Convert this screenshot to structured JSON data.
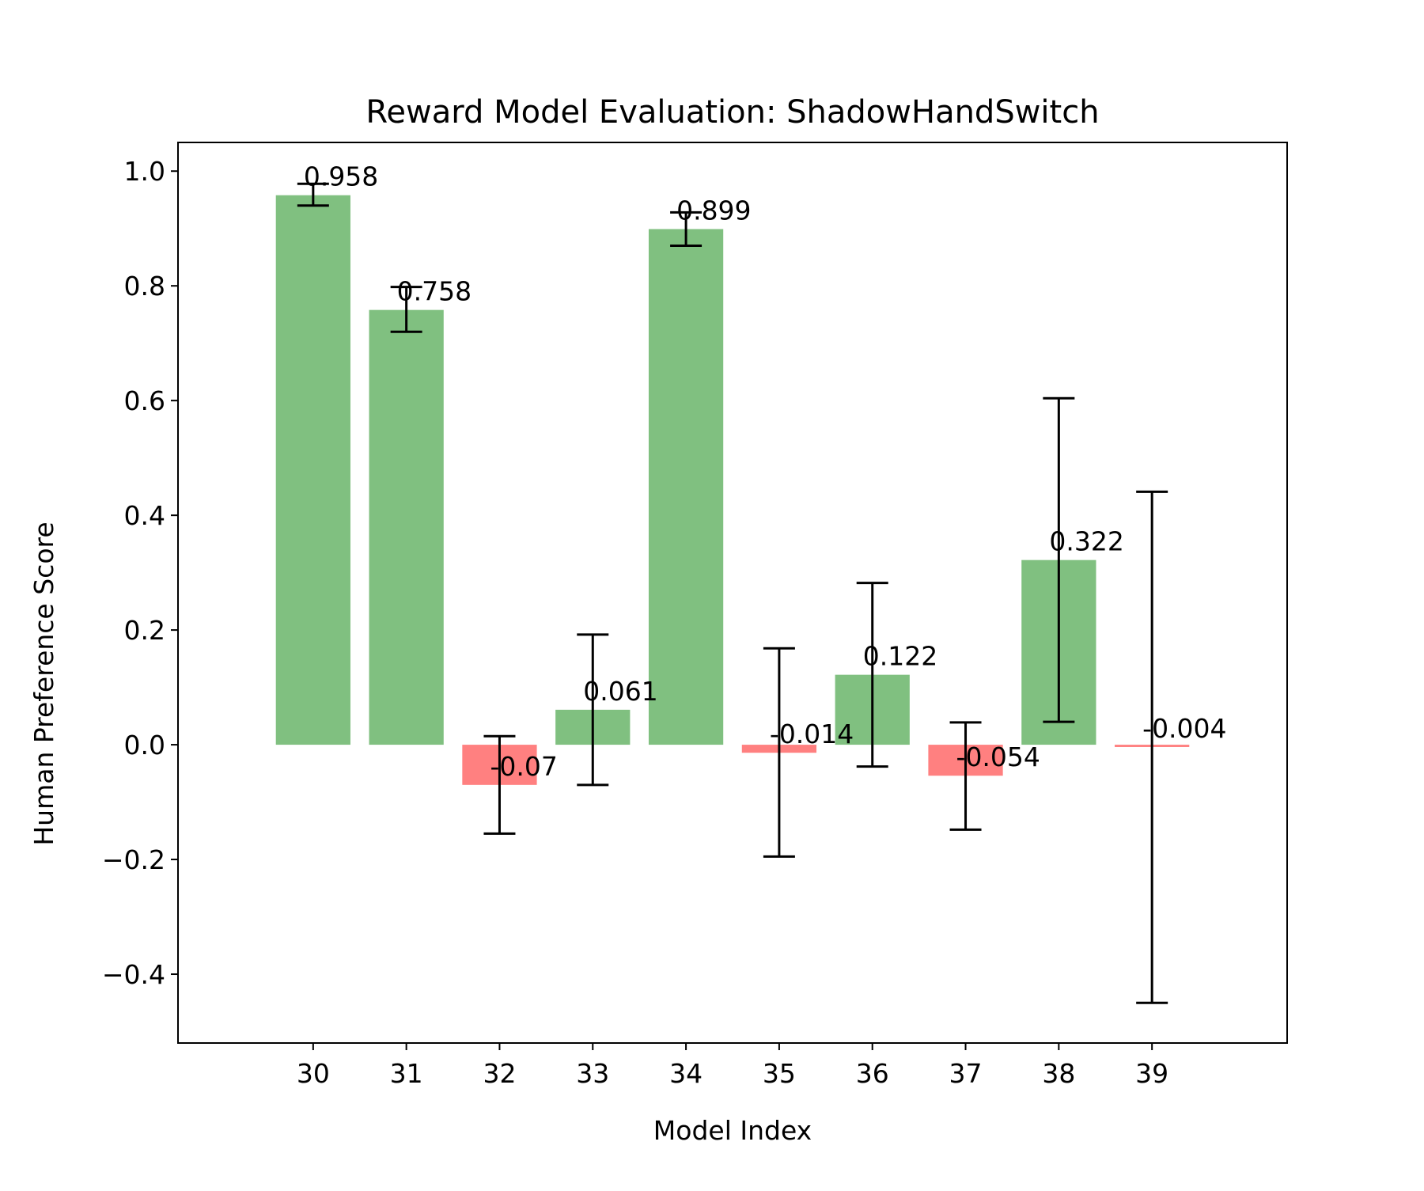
{
  "chart_data": {
    "type": "bar",
    "title": "Reward Model Evaluation: ShadowHandSwitch",
    "xlabel": "Model Index",
    "ylabel": "Human Preference Score",
    "categories": [
      "30",
      "31",
      "32",
      "33",
      "34",
      "35",
      "36",
      "37",
      "38",
      "39"
    ],
    "values": [
      0.958,
      0.758,
      -0.07,
      0.061,
      0.899,
      -0.014,
      0.122,
      -0.054,
      0.322,
      -0.004
    ],
    "error_low": [
      0.94,
      0.72,
      -0.155,
      -0.07,
      0.87,
      -0.195,
      -0.038,
      -0.148,
      0.04,
      -0.45
    ],
    "error_high": [
      0.978,
      0.798,
      0.015,
      0.192,
      0.928,
      0.168,
      0.282,
      0.039,
      0.604,
      0.441
    ],
    "value_labels": [
      "0.958",
      "0.758",
      "-0.07",
      "0.061",
      "0.899",
      "-0.014",
      "0.122",
      "-0.054",
      "0.322",
      "-0.004"
    ],
    "ylim": [
      -0.52,
      1.05
    ],
    "yticks": [
      -0.4,
      -0.2,
      0.0,
      0.2,
      0.4,
      0.6,
      0.8,
      1.0
    ],
    "ytick_labels": [
      "−0.4",
      "−0.2",
      "0.0",
      "0.2",
      "0.4",
      "0.6",
      "0.8",
      "1.0"
    ],
    "grid": false,
    "legend": "none",
    "colors": {
      "positive": "#80c080",
      "negative": "#ff8080",
      "error_bar": "#000000",
      "axes": "#000000"
    }
  }
}
